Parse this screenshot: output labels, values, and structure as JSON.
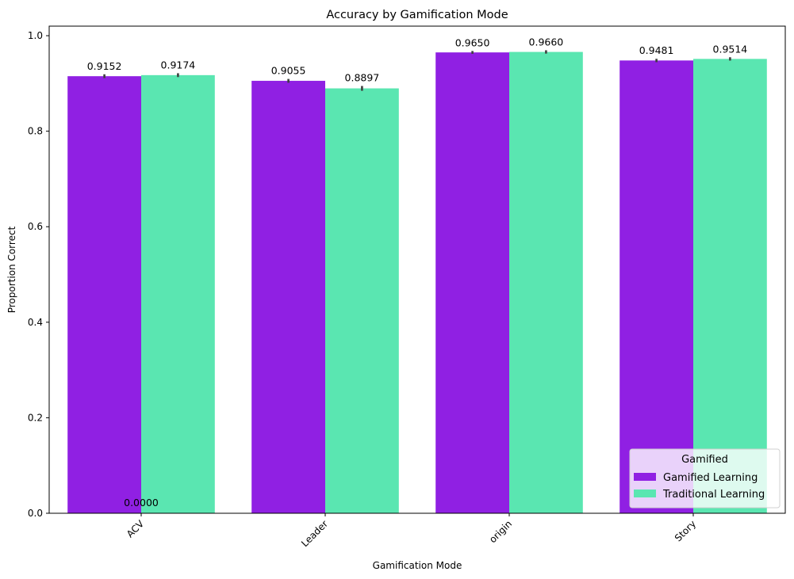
{
  "chart_data": {
    "type": "bar",
    "title": "Accuracy by Gamification Mode",
    "xlabel": "Gamification Mode",
    "ylabel": "Proportion Correct",
    "categories": [
      "ACV",
      "Leader",
      "origin",
      "Story"
    ],
    "series": [
      {
        "name": "Gamified Learning",
        "color": "#9020e3",
        "values": [
          0.9152,
          0.9055,
          0.965,
          0.9481
        ],
        "labels": [
          "0.9152",
          "0.9055",
          "0.9650",
          "0.9481"
        ],
        "ci": [
          0.008,
          0.008,
          0.006,
          0.007
        ]
      },
      {
        "name": "Traditional Learning",
        "color": "#5ae6b1",
        "values": [
          0.9174,
          0.8897,
          0.966,
          0.9514
        ],
        "labels": [
          "0.9174",
          "0.8897",
          "0.9660",
          "0.9514"
        ],
        "ci": [
          0.008,
          0.01,
          0.007,
          0.007
        ]
      }
    ],
    "ylim": [
      0,
      1.0
    ],
    "yticks": [
      0.0,
      0.2,
      0.4,
      0.6,
      0.8,
      1.0
    ],
    "ytick_labels": [
      "0.0",
      "0.2",
      "0.4",
      "0.6",
      "0.8",
      "1.0"
    ],
    "annotations": [
      {
        "text": "0.0000",
        "x": 0.5,
        "y": 0.0
      }
    ],
    "legend": {
      "title": "Gamified",
      "position": "lower-right"
    },
    "grid": false,
    "xtick_rotation": 45
  }
}
